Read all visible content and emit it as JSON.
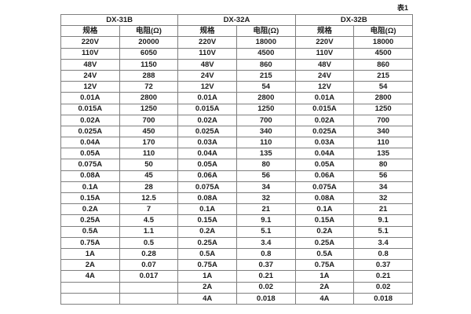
{
  "caption": "表1",
  "groups": [
    {
      "name": "DX-31B"
    },
    {
      "name": "DX-32A"
    },
    {
      "name": "DX-32B"
    }
  ],
  "col_headers": [
    "规格",
    "电阻(Ω)",
    "规格",
    "电阻(Ω)",
    "规格",
    "电阻(Ω)"
  ],
  "rows": [
    [
      "220V",
      "20000",
      "220V",
      "18000",
      "220V",
      "18000"
    ],
    [
      "110V",
      "6050",
      "110V",
      "4500",
      "110V",
      "4500"
    ],
    [
      "48V",
      "1150",
      "48V",
      "860",
      "48V",
      "860"
    ],
    [
      "24V",
      "288",
      "24V",
      "215",
      "24V",
      "215"
    ],
    [
      "12V",
      "72",
      "12V",
      "54",
      "12V",
      "54"
    ],
    [
      "0.01A",
      "2800",
      "0.01A",
      "2800",
      "0.01A",
      "2800"
    ],
    [
      "0.015A",
      "1250",
      "0.015A",
      "1250",
      "0.015A",
      "1250"
    ],
    [
      "0.02A",
      "700",
      "0.02A",
      "700",
      "0.02A",
      "700"
    ],
    [
      "0.025A",
      "450",
      "0.025A",
      "340",
      "0.025A",
      "340"
    ],
    [
      "0.04A",
      "170",
      "0.03A",
      "110",
      "0.03A",
      "110"
    ],
    [
      "0.05A",
      "110",
      "0.04A",
      "135",
      "0.04A",
      "135"
    ],
    [
      "0.075A",
      "50",
      "0.05A",
      "80",
      "0.05A",
      "80"
    ],
    [
      "0.08A",
      "45",
      "0.06A",
      "56",
      "0.06A",
      "56"
    ],
    [
      "0.1A",
      "28",
      "0.075A",
      "34",
      "0.075A",
      "34"
    ],
    [
      "0.15A",
      "12.5",
      "0.08A",
      "32",
      "0.08A",
      "32"
    ],
    [
      "0.2A",
      "7",
      "0.1A",
      "21",
      "0.1A",
      "21"
    ],
    [
      "0.25A",
      "4.5",
      "0.15A",
      "9.1",
      "0.15A",
      "9.1"
    ],
    [
      "0.5A",
      "1.1",
      "0.2A",
      "5.1",
      "0.2A",
      "5.1"
    ],
    [
      "0.75A",
      "0.5",
      "0.25A",
      "3.4",
      "0.25A",
      "3.4"
    ],
    [
      "1A",
      "0.28",
      "0.5A",
      "0.8",
      "0.5A",
      "0.8"
    ],
    [
      "2A",
      "0.07",
      "0.75A",
      "0.37",
      "0.75A",
      "0.37"
    ],
    [
      "4A",
      "0.017",
      "1A",
      "0.21",
      "1A",
      "0.21"
    ],
    [
      "",
      "",
      "2A",
      "0.02",
      "2A",
      "0.02"
    ],
    [
      "",
      "",
      "4A",
      "0.018",
      "4A",
      "0.018"
    ]
  ],
  "colors": {
    "background": "#ffffff",
    "border": "#7f7f7f",
    "text": "#1c1c1c"
  }
}
